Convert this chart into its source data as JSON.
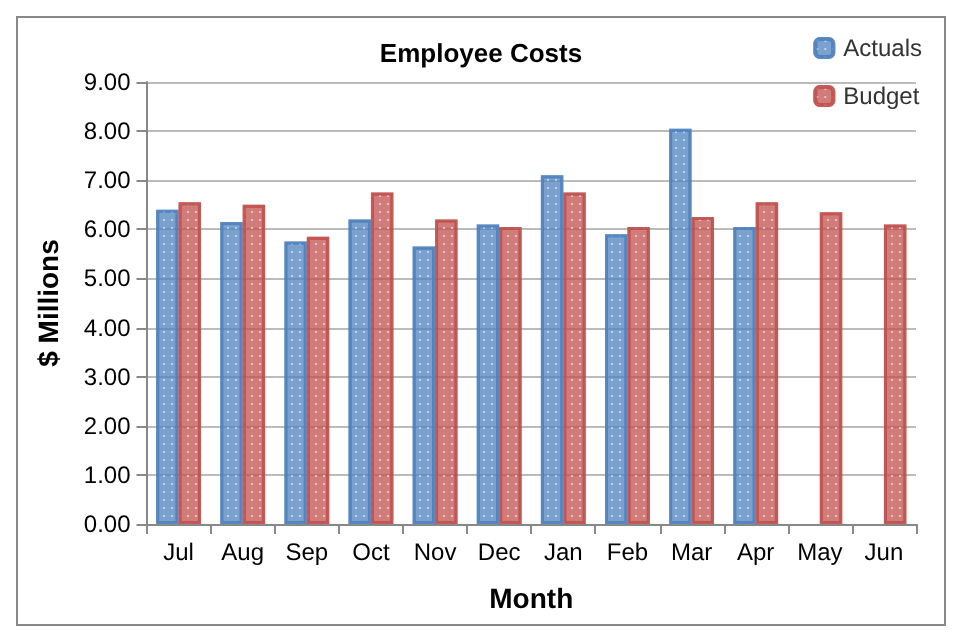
{
  "chart_data": {
    "type": "bar",
    "title": "Employee Costs",
    "xlabel": "Month",
    "ylabel": "$ Millions",
    "categories": [
      "Jul",
      "Aug",
      "Sep",
      "Oct",
      "Nov",
      "Dec",
      "Jan",
      "Feb",
      "Mar",
      "Apr",
      "May",
      "Jun"
    ],
    "series": [
      {
        "name": "Actuals",
        "color": "#4f81bd",
        "values": [
          6.4,
          6.15,
          5.75,
          6.2,
          5.65,
          6.1,
          7.1,
          5.9,
          8.05,
          6.05,
          null,
          null
        ]
      },
      {
        "name": "Budget",
        "color": "#c0504d",
        "values": [
          6.55,
          6.5,
          5.85,
          6.75,
          6.2,
          6.05,
          6.75,
          6.05,
          6.25,
          6.55,
          6.35,
          6.1
        ]
      }
    ],
    "ylim": [
      0,
      9
    ],
    "yticks": [
      {
        "value": 0,
        "label": "0.00"
      },
      {
        "value": 1,
        "label": "1.00"
      },
      {
        "value": 2,
        "label": "2.00"
      },
      {
        "value": 3,
        "label": "3.00"
      },
      {
        "value": 4,
        "label": "4.00"
      },
      {
        "value": 5,
        "label": "5.00"
      },
      {
        "value": 6,
        "label": "6.00"
      },
      {
        "value": 7,
        "label": "7.00"
      },
      {
        "value": 8,
        "label": "8.00"
      },
      {
        "value": 9,
        "label": "9.00"
      }
    ],
    "grid": "y",
    "legend": "top right"
  }
}
